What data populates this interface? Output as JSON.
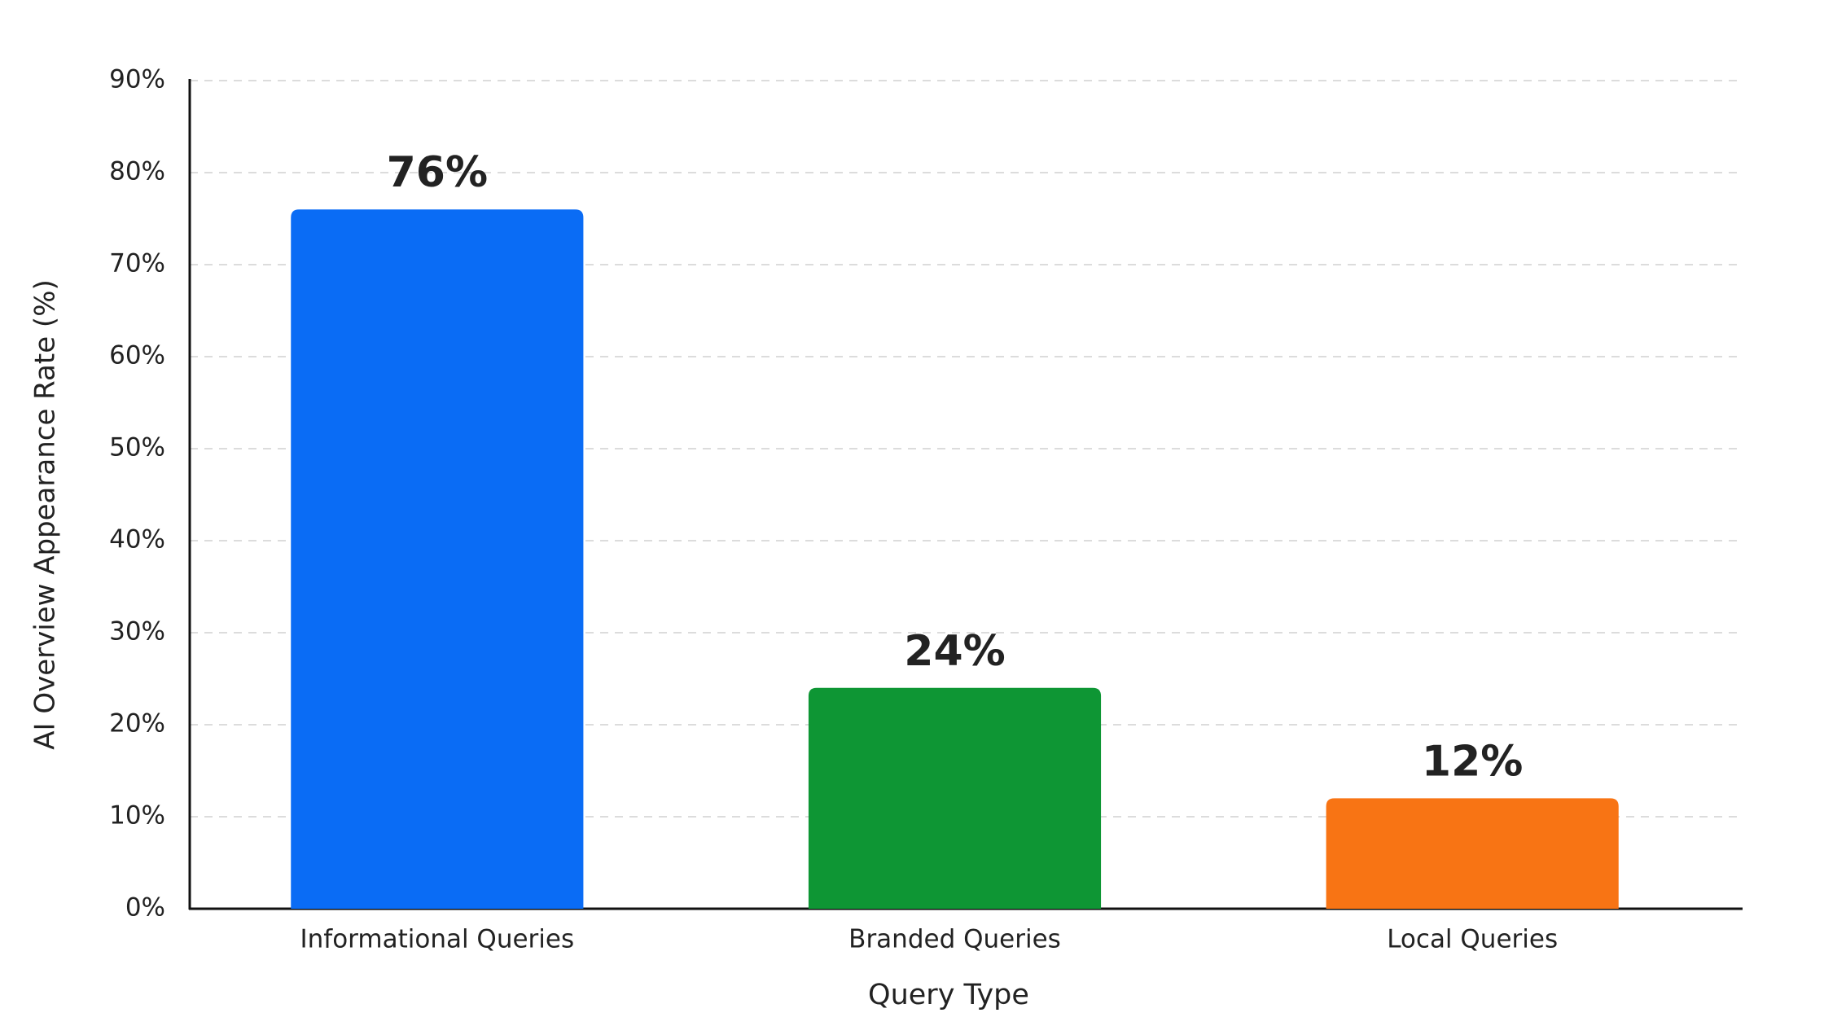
{
  "chart_data": {
    "type": "bar",
    "x_label": "Query Type",
    "y_label": "AI Overview Appearance Rate (%)",
    "categories": [
      "Informational Queries",
      "Branded Queries",
      "Local Queries"
    ],
    "values": [
      76,
      24,
      12
    ],
    "value_labels": [
      "76%",
      "24%",
      "12%"
    ],
    "colors": [
      "#0a6cf5",
      "#0e9634",
      "#f87414"
    ],
    "ylim": [
      0,
      90
    ],
    "yticks": [
      {
        "value": 0,
        "label": "0%"
      },
      {
        "value": 10,
        "label": "10%"
      },
      {
        "value": 20,
        "label": "20%"
      },
      {
        "value": 30,
        "label": "30%"
      },
      {
        "value": 40,
        "label": "40%"
      },
      {
        "value": 50,
        "label": "50%"
      },
      {
        "value": 60,
        "label": "60%"
      },
      {
        "value": 70,
        "label": "70%"
      },
      {
        "value": 80,
        "label": "80%"
      },
      {
        "value": 90,
        "label": "90%"
      }
    ],
    "grid": true
  }
}
